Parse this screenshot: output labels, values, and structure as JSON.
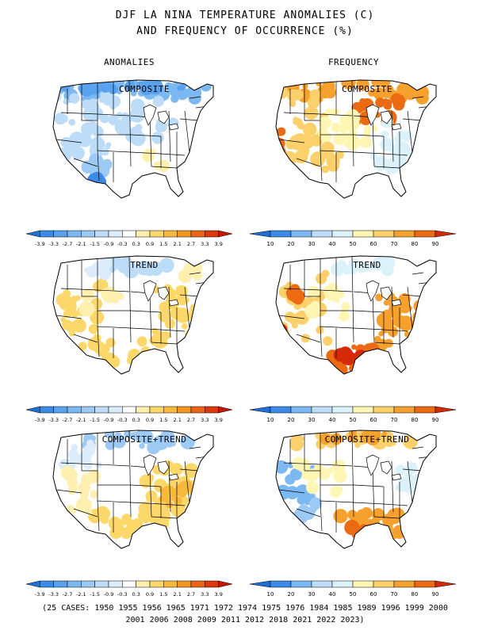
{
  "title_line1": "DJF LA NINA TEMPERATURE ANOMALIES (C)",
  "title_line2": "AND FREQUENCY OF OCCURRENCE (%)",
  "col_left": "ANOMALIES",
  "col_right": "FREQUENCY",
  "panels": [
    {
      "label": "COMPOSITE",
      "col": "anomalies",
      "pattern": "composite_anom"
    },
    {
      "label": "COMPOSITE",
      "col": "frequency",
      "pattern": "composite_freq"
    },
    {
      "label": "TREND",
      "col": "anomalies",
      "pattern": "trend_anom"
    },
    {
      "label": "TREND",
      "col": "frequency",
      "pattern": "trend_freq"
    },
    {
      "label": "COMPOSITE+TREND",
      "col": "anomalies",
      "pattern": "ct_anom"
    },
    {
      "label": "COMPOSITE+TREND",
      "col": "frequency",
      "pattern": "ct_freq"
    }
  ],
  "anom_scale": {
    "ticks": [
      "-3.9",
      "-3.3",
      "-2.7",
      "-2.1",
      "-1.5",
      "-0.9",
      "-0.3",
      "0.3",
      "0.9",
      "1.5",
      "2.1",
      "2.7",
      "3.3",
      "3.9"
    ],
    "colors": [
      "#1e6fd6",
      "#3c8be6",
      "#5aa2ee",
      "#7cb8f2",
      "#9ccaf4",
      "#bcdcf7",
      "#dcecfa",
      "#ffffff",
      "#fff0b0",
      "#fcd86a",
      "#f8b83c",
      "#f29522",
      "#ea6614",
      "#dc3a0c",
      "#c41808"
    ]
  },
  "freq_scale": {
    "ticks": [
      "10",
      "20",
      "30",
      "40",
      "50",
      "60",
      "70",
      "80",
      "90"
    ],
    "colors": [
      "#1e6fd6",
      "#3c8be6",
      "#7cb8f2",
      "#bcdcf7",
      "#dcf2fa",
      "#fff6b4",
      "#fcd06a",
      "#f6a02e",
      "#ec6a12",
      "#d42a08"
    ]
  },
  "cases_line1": "(25 CASES:  1950 1955 1956 1965 1971 1972 1974 1975 1976 1984 1985 1989 1996 1999 2000",
  "cases_line2": "2001 2006 2008 2009 2011 2012 2018 2021 2022 2023)"
}
